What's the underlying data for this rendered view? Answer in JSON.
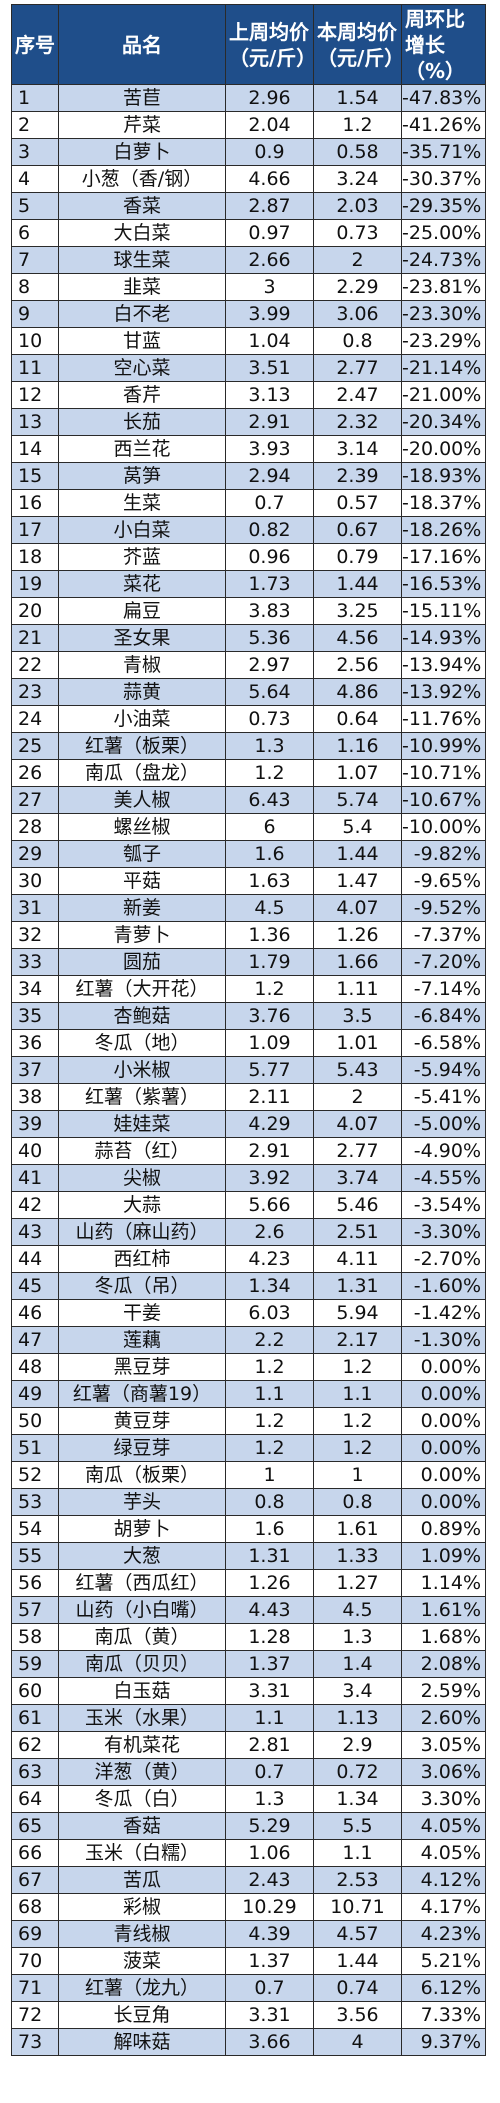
{
  "table": {
    "headers": {
      "no": "序号",
      "name": "品名",
      "last_week": "上周均价（元/斤）",
      "this_week": "本周均价（元/斤）",
      "change": "周环比增长（%）"
    },
    "rows": [
      [
        "1",
        "苦苣",
        "2.96",
        "1.54",
        "-47.83%"
      ],
      [
        "2",
        "芹菜",
        "2.04",
        "1.2",
        "-41.26%"
      ],
      [
        "3",
        "白萝卜",
        "0.9",
        "0.58",
        "-35.71%"
      ],
      [
        "4",
        "小葱（香/钢）",
        "4.66",
        "3.24",
        "-30.37%"
      ],
      [
        "5",
        "香菜",
        "2.87",
        "2.03",
        "-29.35%"
      ],
      [
        "6",
        "大白菜",
        "0.97",
        "0.73",
        "-25.00%"
      ],
      [
        "7",
        "球生菜",
        "2.66",
        "2",
        "-24.73%"
      ],
      [
        "8",
        "韭菜",
        "3",
        "2.29",
        "-23.81%"
      ],
      [
        "9",
        "白不老",
        "3.99",
        "3.06",
        "-23.30%"
      ],
      [
        "10",
        "甘蓝",
        "1.04",
        "0.8",
        "-23.29%"
      ],
      [
        "11",
        "空心菜",
        "3.51",
        "2.77",
        "-21.14%"
      ],
      [
        "12",
        "香芹",
        "3.13",
        "2.47",
        "-21.00%"
      ],
      [
        "13",
        "长茄",
        "2.91",
        "2.32",
        "-20.34%"
      ],
      [
        "14",
        "西兰花",
        "3.93",
        "3.14",
        "-20.00%"
      ],
      [
        "15",
        "莴笋",
        "2.94",
        "2.39",
        "-18.93%"
      ],
      [
        "16",
        "生菜",
        "0.7",
        "0.57",
        "-18.37%"
      ],
      [
        "17",
        "小白菜",
        "0.82",
        "0.67",
        "-18.26%"
      ],
      [
        "18",
        "芥蓝",
        "0.96",
        "0.79",
        "-17.16%"
      ],
      [
        "19",
        "菜花",
        "1.73",
        "1.44",
        "-16.53%"
      ],
      [
        "20",
        "扁豆",
        "3.83",
        "3.25",
        "-15.11%"
      ],
      [
        "21",
        "圣女果",
        "5.36",
        "4.56",
        "-14.93%"
      ],
      [
        "22",
        "青椒",
        "2.97",
        "2.56",
        "-13.94%"
      ],
      [
        "23",
        "蒜黄",
        "5.64",
        "4.86",
        "-13.92%"
      ],
      [
        "24",
        "小油菜",
        "0.73",
        "0.64",
        "-11.76%"
      ],
      [
        "25",
        "红薯（板栗）",
        "1.3",
        "1.16",
        "-10.99%"
      ],
      [
        "26",
        "南瓜（盘龙）",
        "1.2",
        "1.07",
        "-10.71%"
      ],
      [
        "27",
        "美人椒",
        "6.43",
        "5.74",
        "-10.67%"
      ],
      [
        "28",
        "螺丝椒",
        "6",
        "5.4",
        "-10.00%"
      ],
      [
        "29",
        "瓠子",
        "1.6",
        "1.44",
        "-9.82%"
      ],
      [
        "30",
        "平菇",
        "1.63",
        "1.47",
        "-9.65%"
      ],
      [
        "31",
        "新姜",
        "4.5",
        "4.07",
        "-9.52%"
      ],
      [
        "32",
        "青萝卜",
        "1.36",
        "1.26",
        "-7.37%"
      ],
      [
        "33",
        "圆茄",
        "1.79",
        "1.66",
        "-7.20%"
      ],
      [
        "34",
        "红薯（大开花）",
        "1.2",
        "1.11",
        "-7.14%"
      ],
      [
        "35",
        "杏鲍菇",
        "3.76",
        "3.5",
        "-6.84%"
      ],
      [
        "36",
        "冬瓜（地）",
        "1.09",
        "1.01",
        "-6.58%"
      ],
      [
        "37",
        "小米椒",
        "5.77",
        "5.43",
        "-5.94%"
      ],
      [
        "38",
        "红薯（紫薯）",
        "2.11",
        "2",
        "-5.41%"
      ],
      [
        "39",
        "娃娃菜",
        "4.29",
        "4.07",
        "-5.00%"
      ],
      [
        "40",
        "蒜苔（红）",
        "2.91",
        "2.77",
        "-4.90%"
      ],
      [
        "41",
        "尖椒",
        "3.92",
        "3.74",
        "-4.55%"
      ],
      [
        "42",
        "大蒜",
        "5.66",
        "5.46",
        "-3.54%"
      ],
      [
        "43",
        "山药（麻山药）",
        "2.6",
        "2.51",
        "-3.30%"
      ],
      [
        "44",
        "西红柿",
        "4.23",
        "4.11",
        "-2.70%"
      ],
      [
        "45",
        "冬瓜（吊）",
        "1.34",
        "1.31",
        "-1.60%"
      ],
      [
        "46",
        "干姜",
        "6.03",
        "5.94",
        "-1.42%"
      ],
      [
        "47",
        "莲藕",
        "2.2",
        "2.17",
        "-1.30%"
      ],
      [
        "48",
        "黑豆芽",
        "1.2",
        "1.2",
        "0.00%"
      ],
      [
        "49",
        "红薯（商薯19）",
        "1.1",
        "1.1",
        "0.00%"
      ],
      [
        "50",
        "黄豆芽",
        "1.2",
        "1.2",
        "0.00%"
      ],
      [
        "51",
        "绿豆芽",
        "1.2",
        "1.2",
        "0.00%"
      ],
      [
        "52",
        "南瓜（板栗）",
        "1",
        "1",
        "0.00%"
      ],
      [
        "53",
        "芋头",
        "0.8",
        "0.8",
        "0.00%"
      ],
      [
        "54",
        "胡萝卜",
        "1.6",
        "1.61",
        "0.89%"
      ],
      [
        "55",
        "大葱",
        "1.31",
        "1.33",
        "1.09%"
      ],
      [
        "56",
        "红薯（西瓜红）",
        "1.26",
        "1.27",
        "1.14%"
      ],
      [
        "57",
        "山药（小白嘴）",
        "4.43",
        "4.5",
        "1.61%"
      ],
      [
        "58",
        "南瓜（黄）",
        "1.28",
        "1.3",
        "1.68%"
      ],
      [
        "59",
        "南瓜（贝贝）",
        "1.37",
        "1.4",
        "2.08%"
      ],
      [
        "60",
        "白玉菇",
        "3.31",
        "3.4",
        "2.59%"
      ],
      [
        "61",
        "玉米（水果）",
        "1.1",
        "1.13",
        "2.60%"
      ],
      [
        "62",
        "有机菜花",
        "2.81",
        "2.9",
        "3.05%"
      ],
      [
        "63",
        "洋葱（黄）",
        "0.7",
        "0.72",
        "3.06%"
      ],
      [
        "64",
        "冬瓜（白）",
        "1.3",
        "1.34",
        "3.30%"
      ],
      [
        "65",
        "香菇",
        "5.29",
        "5.5",
        "4.05%"
      ],
      [
        "66",
        "玉米（白糯）",
        "1.06",
        "1.1",
        "4.05%"
      ],
      [
        "67",
        "苦瓜",
        "2.43",
        "2.53",
        "4.12%"
      ],
      [
        "68",
        "彩椒",
        "10.29",
        "10.71",
        "4.17%"
      ],
      [
        "69",
        "青线椒",
        "4.39",
        "4.57",
        "4.23%"
      ],
      [
        "70",
        "菠菜",
        "1.37",
        "1.44",
        "5.21%"
      ],
      [
        "71",
        "红薯（龙九）",
        "0.7",
        "0.74",
        "6.12%"
      ],
      [
        "72",
        "长豆角",
        "3.31",
        "3.56",
        "7.33%"
      ],
      [
        "73",
        "解味菇",
        "3.66",
        "4",
        "9.37%"
      ]
    ]
  },
  "colors": {
    "header_bg": "#1f4e8a",
    "row_band": "#c7d6ec"
  }
}
